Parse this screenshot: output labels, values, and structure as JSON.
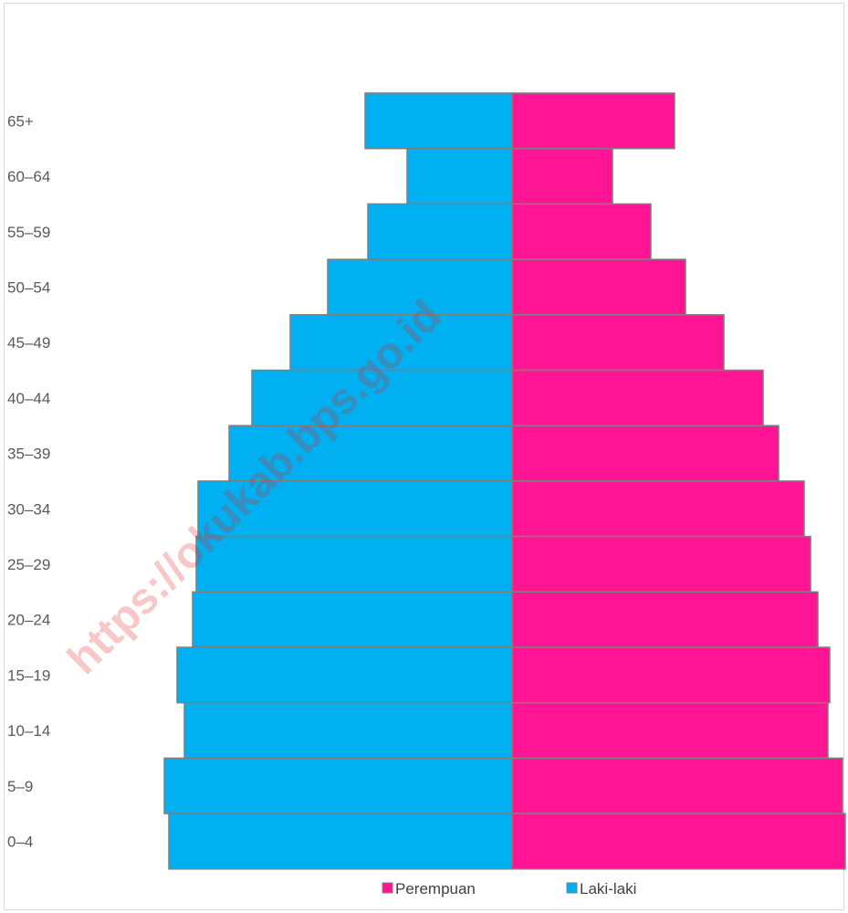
{
  "watermark": "https://okukab.bps.go.id",
  "chart_data": {
    "type": "bar",
    "orientation": "horizontal-pyramid",
    "categories": [
      "65+",
      "60–64",
      "55–59",
      "50–54",
      "45–49",
      "40–44",
      "35–39",
      "30–34",
      "25–29",
      "20–24",
      "15–19",
      "10–14",
      "5–9",
      "0–4"
    ],
    "series": [
      {
        "name": "Laki-laki",
        "color": "#00b0f0",
        "side": "left",
        "values": [
          161,
          115,
          158,
          202,
          243,
          285,
          310,
          344,
          346,
          350,
          367,
          359,
          381,
          376
        ]
      },
      {
        "name": "Perempuan",
        "color": "#ff1493",
        "side": "right",
        "values": [
          178,
          110,
          152,
          190,
          232,
          275,
          292,
          320,
          327,
          335,
          348,
          346,
          362,
          365
        ]
      }
    ],
    "xlim": [
      -381,
      365
    ],
    "legend_placement": "bottom",
    "legend_order": [
      "Perempuan",
      "Laki-laki"
    ],
    "grid": false,
    "bar_edge_color": "#7f7f7f"
  }
}
